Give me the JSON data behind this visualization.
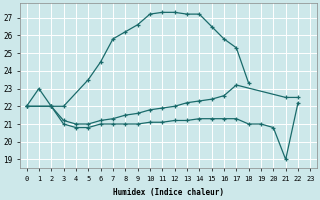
{
  "xlabel": "Humidex (Indice chaleur)",
  "bg_color": "#cde8ea",
  "grid_color": "#ffffff",
  "line_color": "#1a6b6b",
  "xlim": [
    -0.5,
    23.5
  ],
  "ylim": [
    18.5,
    27.8
  ],
  "yticks": [
    19,
    20,
    21,
    22,
    23,
    24,
    25,
    26,
    27
  ],
  "xticks": [
    0,
    1,
    2,
    3,
    4,
    5,
    6,
    7,
    8,
    9,
    10,
    11,
    12,
    13,
    14,
    15,
    16,
    17,
    18,
    19,
    20,
    21,
    22,
    23
  ],
  "curve1_x": [
    0,
    1,
    2,
    3,
    5,
    6,
    7,
    8,
    9,
    10,
    11,
    12,
    13,
    14,
    15,
    16,
    17,
    18
  ],
  "curve1_y": [
    22.0,
    23.0,
    22.0,
    22.0,
    23.5,
    24.5,
    25.8,
    26.2,
    26.6,
    27.2,
    27.3,
    27.3,
    27.2,
    27.2,
    26.5,
    25.8,
    25.3,
    23.3
  ],
  "curve2_x": [
    0,
    2,
    3,
    4,
    5,
    6,
    7,
    8,
    9,
    10,
    11,
    12,
    13,
    14,
    15,
    16,
    17,
    21,
    22
  ],
  "curve2_y": [
    22.0,
    22.0,
    21.2,
    21.0,
    21.0,
    21.2,
    21.3,
    21.5,
    21.6,
    21.8,
    21.9,
    22.0,
    22.2,
    22.3,
    22.4,
    22.6,
    23.2,
    22.5,
    22.5
  ],
  "curve3_x": [
    0,
    2,
    3,
    4,
    5,
    6,
    7,
    8,
    9,
    10,
    11,
    12,
    13,
    14,
    15,
    16,
    17,
    18,
    19,
    20,
    21,
    22
  ],
  "curve3_y": [
    22.0,
    22.0,
    21.0,
    20.8,
    20.8,
    21.0,
    21.0,
    21.0,
    21.0,
    21.1,
    21.1,
    21.2,
    21.2,
    21.3,
    21.3,
    21.3,
    21.3,
    21.0,
    21.0,
    20.8,
    19.0,
    22.2
  ]
}
